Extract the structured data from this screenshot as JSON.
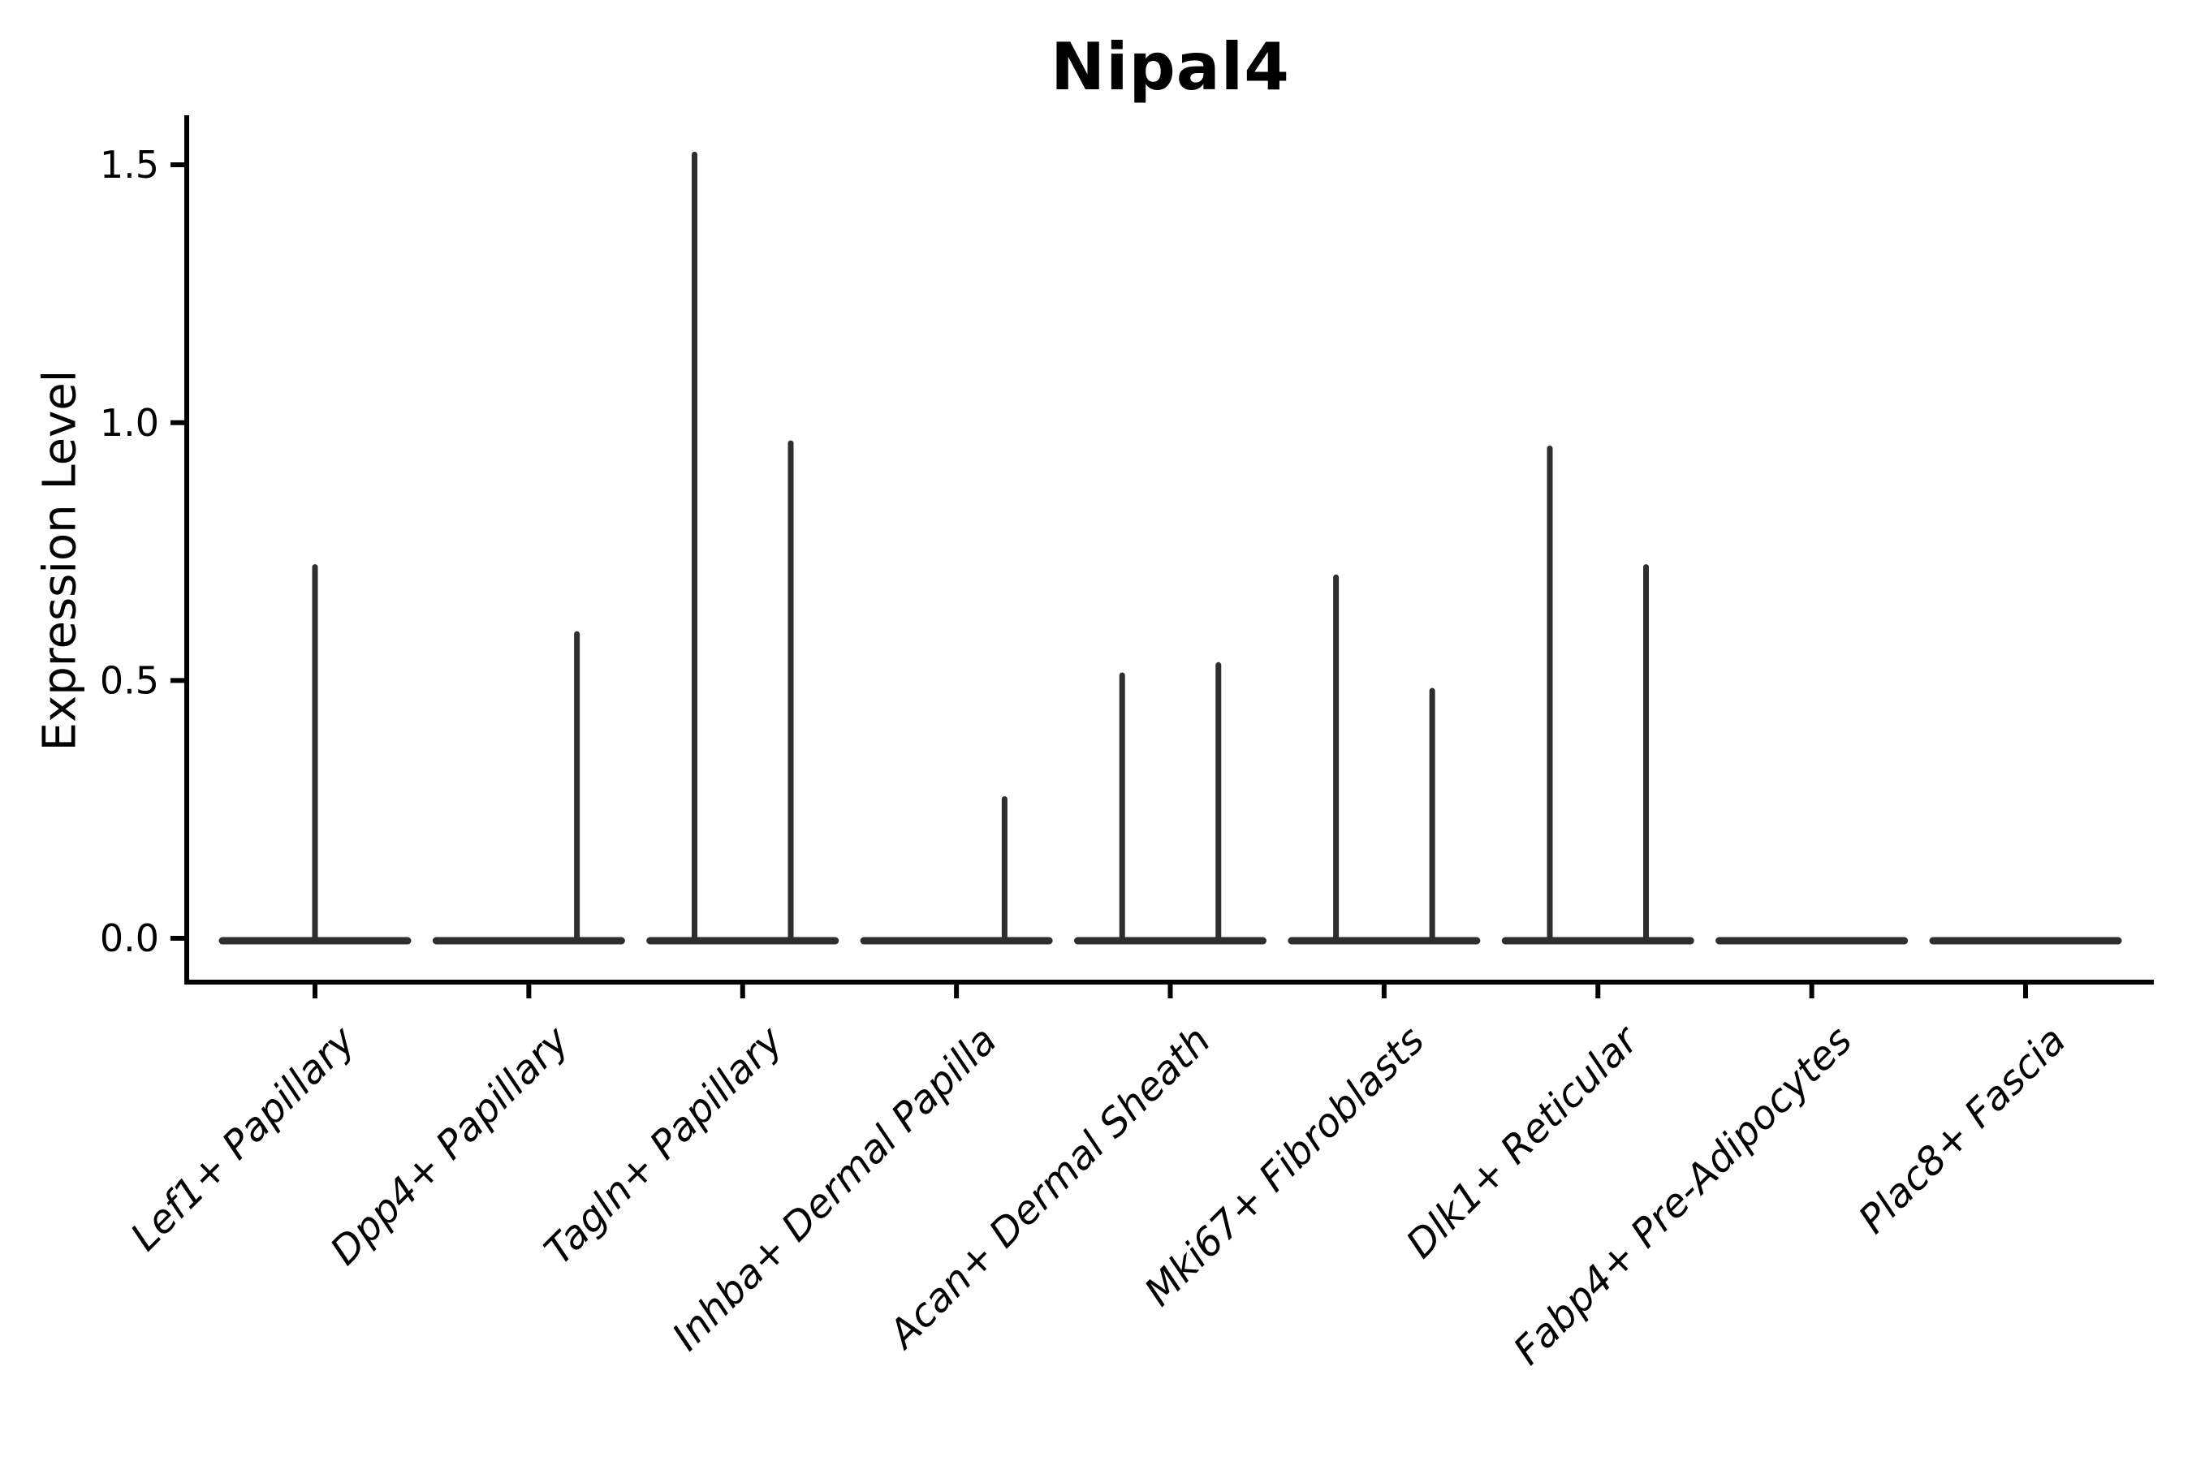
{
  "title": "Nipal4",
  "chart_data": {
    "type": "violin",
    "title": "Nipal4",
    "xlabel": "",
    "ylabel": "Expression Level",
    "y_ticks": [
      "0.0",
      "0.5",
      "1.0",
      "1.5"
    ],
    "y_tick_values": [
      0.0,
      0.5,
      1.0,
      1.5
    ],
    "ylim": [
      -0.085,
      1.6
    ],
    "grid": "off",
    "legend": "none",
    "violin_color": "#2e2e2e",
    "axis_color": "#000000",
    "violin_total_width": 0.9,
    "categories": [
      "Lef1+ Papillary",
      "Dpp4+ Papillary",
      "Tagln+ Papillary",
      "Inhba+ Dermal Papilla",
      "Acan+ Dermal Sheath",
      "Mki67+ Fibroblasts",
      "Dlk1+ Reticular",
      "Fabp4+ Pre-Adipocytes",
      "Plac8+ Fascia"
    ],
    "violins": [
      {
        "category": "Lef1+ Papillary",
        "base_at_zero": true,
        "spikes": [
          {
            "offset": 0.0,
            "max_expression": 0.72
          }
        ]
      },
      {
        "category": "Dpp4+ Papillary",
        "base_at_zero": true,
        "spikes": [
          {
            "offset": 0.225,
            "max_expression": 0.59
          }
        ]
      },
      {
        "category": "Tagln+ Papillary",
        "base_at_zero": true,
        "spikes": [
          {
            "offset": -0.225,
            "max_expression": 1.52
          },
          {
            "offset": 0.225,
            "max_expression": 0.96
          }
        ]
      },
      {
        "category": "Inhba+ Dermal Papilla",
        "base_at_zero": true,
        "spikes": [
          {
            "offset": 0.225,
            "max_expression": 0.27
          }
        ]
      },
      {
        "category": "Acan+ Dermal Sheath",
        "base_at_zero": true,
        "spikes": [
          {
            "offset": -0.225,
            "max_expression": 0.51
          },
          {
            "offset": 0.225,
            "max_expression": 0.53
          }
        ]
      },
      {
        "category": "Mki67+ Fibroblasts",
        "base_at_zero": true,
        "spikes": [
          {
            "offset": -0.225,
            "max_expression": 0.7
          },
          {
            "offset": 0.225,
            "max_expression": 0.48
          }
        ]
      },
      {
        "category": "Dlk1+ Reticular",
        "base_at_zero": true,
        "spikes": [
          {
            "offset": -0.225,
            "max_expression": 0.95
          },
          {
            "offset": 0.225,
            "max_expression": 0.72
          }
        ]
      },
      {
        "category": "Fabp4+ Pre-Adipocytes",
        "base_at_zero": true,
        "spikes": []
      },
      {
        "category": "Plac8+ Fascia",
        "base_at_zero": true,
        "spikes": []
      }
    ]
  }
}
